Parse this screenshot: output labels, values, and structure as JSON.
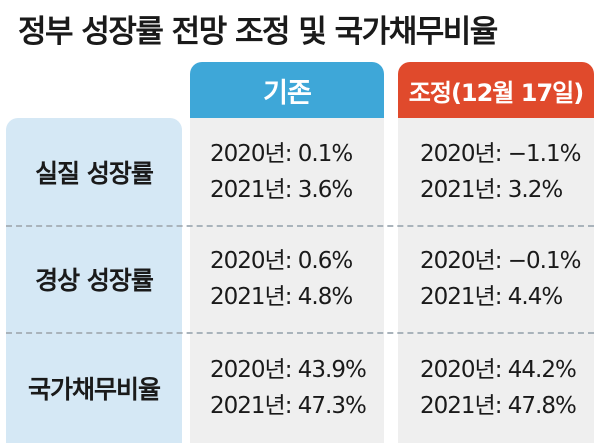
{
  "title": "정부 성장률 전망 조정 및 국가채무비율",
  "columns": {
    "existing": "기존",
    "adjusted": "조정(12월 17일)"
  },
  "rows": [
    {
      "label": "실질 성장률",
      "existing": [
        "2020년: 0.1%",
        "2021년: 3.6%"
      ],
      "adjusted": [
        "2020년: −1.1%",
        "2021년: 3.2%"
      ]
    },
    {
      "label": "경상 성장률",
      "existing": [
        "2020년: 0.6%",
        "2021년: 4.8%"
      ],
      "adjusted": [
        "2020년: −0.1%",
        "2021년: 4.4%"
      ]
    },
    {
      "label": "국가채무비율",
      "existing": [
        "2020년: 43.9%",
        "2021년: 47.3%"
      ],
      "adjusted": [
        "2020년: 44.2%",
        "2021년: 47.8%"
      ]
    }
  ],
  "colors": {
    "existing_header": "#3ea7d8",
    "adjusted_header": "#e04a2c",
    "label_column": "#d5e8f5",
    "cell_background": "#efefef"
  }
}
